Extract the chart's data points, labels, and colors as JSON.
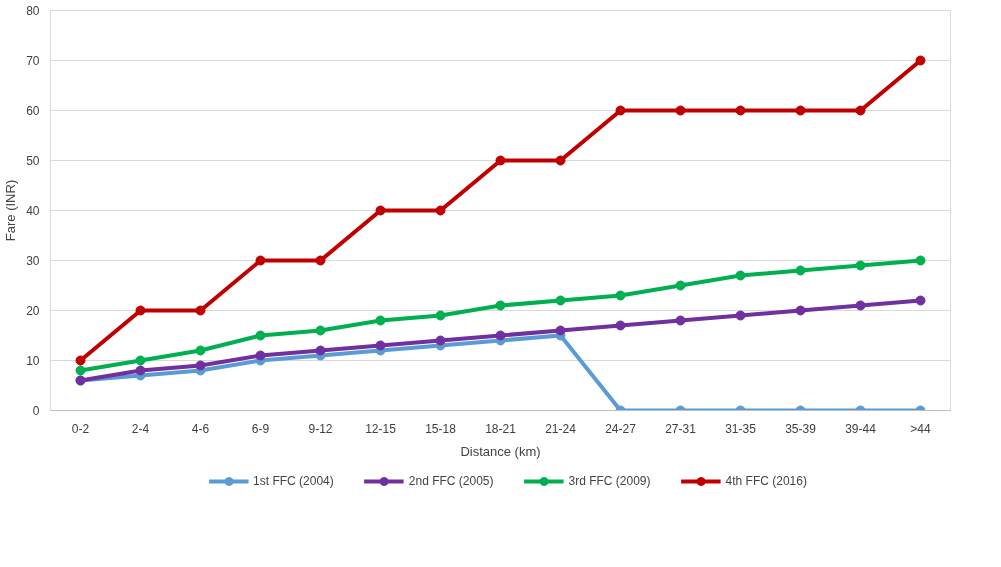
{
  "chart_data": {
    "type": "line",
    "xlabel": "Distance (km)",
    "ylabel": "Fare (INR)",
    "categories": [
      "0-2",
      "2-4",
      "4-6",
      "6-9",
      "9-12",
      "12-15",
      "15-18",
      "18-21",
      "21-24",
      "24-27",
      "27-31",
      "31-35",
      "35-39",
      "39-44",
      ">44"
    ],
    "series": [
      {
        "name": "1st FFC (2004)",
        "color": "#5b9bd5",
        "values": [
          6,
          7,
          8,
          10,
          11,
          12,
          13,
          14,
          15,
          0,
          0,
          0,
          0,
          0,
          0
        ]
      },
      {
        "name": "2nd FFC (2005)",
        "color": "#7030a0",
        "values": [
          6,
          8,
          9,
          11,
          12,
          13,
          14,
          15,
          16,
          17,
          18,
          19,
          20,
          21,
          22
        ]
      },
      {
        "name": "3rd FFC (2009)",
        "color": "#00b050",
        "values": [
          8,
          10,
          12,
          15,
          16,
          18,
          19,
          21,
          22,
          23,
          25,
          27,
          28,
          29,
          30
        ]
      },
      {
        "name": "4th FFC (2016)",
        "color": "#c00000",
        "values": [
          10,
          20,
          20,
          30,
          30,
          40,
          40,
          50,
          50,
          60,
          60,
          60,
          60,
          60,
          70
        ]
      }
    ],
    "ylim": [
      0,
      80
    ],
    "yticks": [
      0,
      10,
      20,
      30,
      40,
      50,
      60,
      70,
      80
    ],
    "grid": "y",
    "legend": "bottom",
    "marker": "circle",
    "line_style": "solid"
  }
}
